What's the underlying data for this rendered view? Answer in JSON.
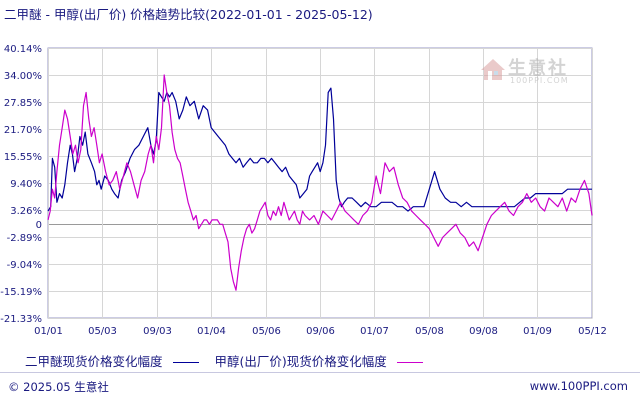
{
  "title": "二甲醚 - 甲醇(出厂价) 价格趋势比较(2022-01-01 - 2025-05-12)",
  "footer": {
    "copyright": "© 2025.05 生意社",
    "site": "www.100PPI.com"
  },
  "watermark": {
    "name": "生意社",
    "sub": "100PPI.COM"
  },
  "colors": {
    "series1": "#000099",
    "series2": "#cc00cc",
    "axis": "#1a1a80",
    "grid": "#cfcfcf"
  },
  "chart_data": {
    "type": "line",
    "title": "二甲醚 - 甲醇(出厂价) 价格趋势比较(2022-01-01 - 2025-05-12)",
    "grid": true,
    "legend_position": "bottom",
    "ylim": [
      -21.33,
      40.14
    ],
    "yticks": [
      "40.14%",
      "34.00%",
      "27.85%",
      "21.70%",
      "15.55%",
      "9.40%",
      "3.26%",
      "0",
      "-2.89%",
      "-9.04%",
      "-15.19%",
      "-21.33%"
    ],
    "ytick_values": [
      40.14,
      34.0,
      27.85,
      21.7,
      15.55,
      9.4,
      3.26,
      0,
      -2.89,
      -9.04,
      -15.19,
      -21.33
    ],
    "xticks": [
      "01/01",
      "05/03",
      "09/03",
      "01/04",
      "05/06",
      "09/06",
      "01/07",
      "05/08",
      "09/08",
      "01/09",
      "05/12"
    ],
    "xtick_values": [
      0,
      122,
      245,
      368,
      491,
      613,
      736,
      859,
      981,
      1104,
      1227
    ],
    "series": [
      {
        "name": "二甲醚现货价格变化幅度",
        "color": "#000099",
        "x": [
          0,
          6,
          10,
          15,
          20,
          26,
          32,
          38,
          44,
          50,
          55,
          60,
          66,
          72,
          78,
          84,
          90,
          98,
          105,
          110,
          115,
          120,
          128,
          136,
          144,
          150,
          158,
          166,
          175,
          185,
          195,
          205,
          215,
          225,
          232,
          238,
          244,
          250,
          256,
          262,
          268,
          274,
          280,
          288,
          296,
          304,
          312,
          320,
          330,
          340,
          350,
          360,
          368,
          376,
          384,
          392,
          400,
          408,
          416,
          424,
          432,
          440,
          448,
          456,
          464,
          472,
          480,
          488,
          496,
          504,
          512,
          520,
          528,
          536,
          544,
          552,
          560,
          568,
          576,
          584,
          590,
          596,
          602,
          608,
          614,
          620,
          626,
          632,
          638,
          644,
          650,
          656,
          662,
          668,
          676,
          686,
          696,
          706,
          716,
          728,
          740,
          752,
          764,
          776,
          788,
          800,
          812,
          824,
          836,
          848,
          860,
          872,
          884,
          896,
          908,
          920,
          932,
          944,
          956,
          968,
          980,
          992,
          1004,
          1016,
          1028,
          1040,
          1052,
          1064,
          1076,
          1088,
          1100,
          1112,
          1124,
          1136,
          1148,
          1160,
          1172,
          1184,
          1196,
          1208,
          1220,
          1227
        ],
        "y": [
          3,
          4,
          15,
          13,
          5,
          7,
          6,
          9,
          14,
          18,
          16,
          12,
          15,
          20,
          18,
          21,
          16,
          14,
          12,
          9,
          10,
          8,
          11,
          10,
          8,
          7,
          6,
          10,
          12,
          15,
          17,
          18,
          20,
          22,
          18,
          16,
          19,
          30,
          29,
          28,
          30,
          29,
          30,
          28,
          24,
          26,
          29,
          27,
          28,
          24,
          27,
          26,
          22,
          21,
          20,
          19,
          18,
          16,
          15,
          14,
          15,
          13,
          14,
          15,
          14,
          14,
          15,
          15,
          14,
          15,
          14,
          13,
          12,
          13,
          11,
          10,
          9,
          6,
          7,
          8,
          11,
          12,
          13,
          14,
          12,
          14,
          18,
          30,
          31,
          24,
          10,
          6,
          4,
          5,
          6,
          6,
          5,
          4,
          5,
          4,
          4,
          5,
          5,
          5,
          4,
          4,
          3,
          4,
          4,
          4,
          8,
          12,
          8,
          6,
          5,
          5,
          4,
          5,
          4,
          4,
          4,
          4,
          4,
          4,
          4,
          4,
          4,
          5,
          6,
          6,
          7,
          7,
          7,
          7,
          7,
          7,
          8,
          8,
          8,
          8,
          8,
          8
        ]
      },
      {
        "name": "甲醇(出厂价)现货价格变化幅度",
        "color": "#cc00cc",
        "x": [
          0,
          5,
          10,
          15,
          20,
          26,
          32,
          38,
          44,
          50,
          56,
          62,
          68,
          74,
          80,
          86,
          92,
          98,
          104,
          110,
          116,
          122,
          130,
          138,
          146,
          154,
          162,
          170,
          178,
          186,
          194,
          202,
          210,
          218,
          226,
          232,
          238,
          244,
          250,
          256,
          262,
          268,
          274,
          280,
          286,
          292,
          298,
          304,
          310,
          316,
          322,
          328,
          334,
          340,
          346,
          352,
          358,
          364,
          370,
          376,
          382,
          388,
          394,
          400,
          406,
          412,
          418,
          424,
          430,
          436,
          442,
          448,
          454,
          460,
          466,
          472,
          478,
          484,
          490,
          496,
          502,
          508,
          514,
          520,
          526,
          532,
          538,
          544,
          550,
          556,
          562,
          568,
          574,
          580,
          590,
          600,
          610,
          620,
          630,
          640,
          650,
          660,
          670,
          680,
          690,
          700,
          710,
          720,
          730,
          740,
          750,
          760,
          770,
          780,
          790,
          800,
          810,
          820,
          830,
          840,
          850,
          860,
          870,
          880,
          890,
          900,
          910,
          920,
          930,
          940,
          950,
          960,
          970,
          980,
          990,
          1000,
          1010,
          1020,
          1030,
          1040,
          1050,
          1060,
          1070,
          1080,
          1090,
          1100,
          1110,
          1120,
          1130,
          1140,
          1150,
          1160,
          1170,
          1180,
          1190,
          1200,
          1210,
          1220,
          1227
        ],
        "y": [
          1,
          3,
          8,
          6,
          12,
          18,
          22,
          26,
          24,
          20,
          16,
          18,
          14,
          17,
          27,
          30,
          24,
          20,
          22,
          18,
          14,
          16,
          12,
          9,
          10,
          12,
          8,
          11,
          14,
          12,
          9,
          6,
          10,
          12,
          16,
          18,
          14,
          20,
          17,
          22,
          34,
          30,
          27,
          21,
          17,
          15,
          14,
          11,
          8,
          5,
          3,
          1,
          2,
          -1,
          0,
          1,
          1,
          0,
          1,
          1,
          1,
          0,
          0,
          -2,
          -4,
          -10,
          -13,
          -15,
          -10,
          -6,
          -3,
          -1,
          0,
          -2,
          -1,
          1,
          3,
          4,
          5,
          2,
          1,
          3,
          2,
          4,
          2,
          5,
          3,
          1,
          2,
          3,
          1,
          0,
          3,
          2,
          1,
          2,
          0,
          3,
          2,
          1,
          3,
          5,
          3,
          2,
          1,
          0,
          2,
          3,
          5,
          11,
          7,
          14,
          12,
          13,
          9,
          6,
          5,
          3,
          2,
          1,
          0,
          -1,
          -3,
          -5,
          -3,
          -2,
          -1,
          0,
          -2,
          -3,
          -5,
          -4,
          -6,
          -3,
          0,
          2,
          3,
          4,
          5,
          3,
          2,
          4,
          5,
          7,
          5,
          6,
          4,
          3,
          6,
          5,
          4,
          6,
          3,
          6,
          5,
          8,
          10,
          7,
          2
        ]
      }
    ]
  }
}
